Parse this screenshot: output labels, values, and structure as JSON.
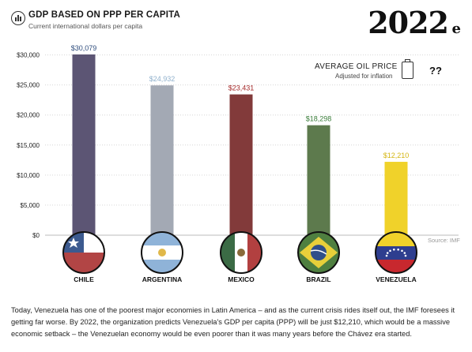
{
  "header": {
    "title": "GDP BASED ON PPP PER CAPITA",
    "subtitle": "Current international dollars per capita",
    "year": "2022",
    "year_suffix": "e"
  },
  "oil_price": {
    "label": "AVERAGE OIL PRICE",
    "sublabel": "Adjusted for inflation",
    "value": "??"
  },
  "source": "Source: IMF",
  "caption": "Today, Venezuela has one of the poorest major economies in Latin America – and as the current crisis rides itself out, the IMF foresees it getting far worse. By 2022, the organization predicts Venezuela's GDP per capita (PPP) will be just $12,210, which would be a massive economic setback – the Venezuelan economy would be even poorer than it was many years before the Chávez era started.",
  "chart_data": {
    "type": "bar",
    "title": "GDP BASED ON PPP PER CAPITA",
    "subtitle": "Current international dollars per capita",
    "categories": [
      "CHILE",
      "ARGENTINA",
      "MEXICO",
      "BRAZIL",
      "VENEZUELA"
    ],
    "values": [
      30079,
      24932,
      23431,
      18298,
      12210
    ],
    "value_labels": [
      "$30,079",
      "$24,932",
      "$23,431",
      "$18,298",
      "$12,210"
    ],
    "bar_colors": [
      "#5c5574",
      "#a3a9b4",
      "#823a3a",
      "#5d7a4d",
      "#f0d22a"
    ],
    "label_colors": [
      "#2f4d7d",
      "#8fb0cc",
      "#a52a2a",
      "#3a7d3a",
      "#d4b50f"
    ],
    "yticks": [
      0,
      5000,
      10000,
      15000,
      20000,
      25000,
      30000
    ],
    "ytick_labels": [
      "$0",
      "$5,000",
      "$10,000",
      "$15,000",
      "$20,000",
      "$25,000",
      "$30,000"
    ],
    "ylim": [
      0,
      30079
    ],
    "grid": true,
    "flags": [
      "chile-flag",
      "argentina-flag",
      "mexico-flag",
      "brazil-flag",
      "venezuela-flag"
    ]
  }
}
